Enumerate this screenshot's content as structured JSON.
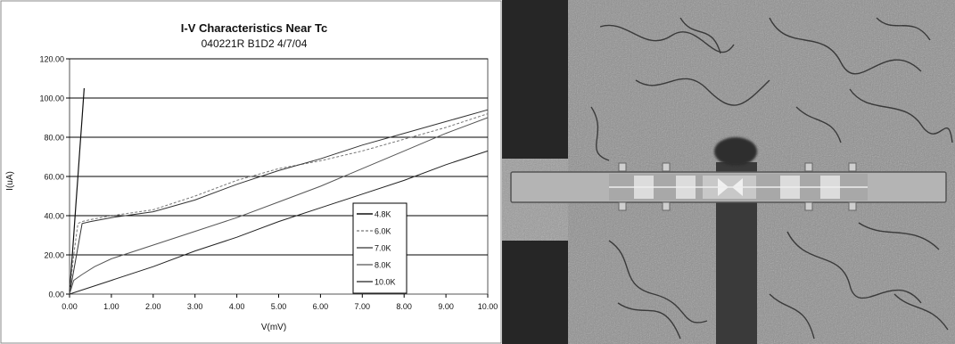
{
  "chart_data": {
    "type": "line",
    "title": "I-V Characteristics Near Tc",
    "subtitle": "040221R B1D2 4/7/04",
    "xlabel": "V(mV)",
    "ylabel": "I(uA)",
    "xlim": [
      0,
      10
    ],
    "ylim": [
      0,
      120
    ],
    "x_ticks": [
      "0.00",
      "1.00",
      "2.00",
      "3.00",
      "4.00",
      "5.00",
      "6.00",
      "7.00",
      "8.00",
      "9.00",
      "10.00"
    ],
    "y_ticks": [
      "0.00",
      "20.00",
      "40.00",
      "60.00",
      "80.00",
      "100.00",
      "120.00"
    ],
    "grid": "horizontal",
    "legend_position": "right",
    "series": [
      {
        "name": "4.8K",
        "x": [
          0,
          0.05,
          0.1,
          0.15,
          0.2,
          0.25,
          0.3,
          0.35
        ],
        "y": [
          0,
          15,
          30,
          45,
          60,
          75,
          90,
          105
        ]
      },
      {
        "name": "6.0K",
        "x": [
          0,
          0.05,
          0.1,
          0.2,
          0.3,
          0.5,
          1.0,
          2.0,
          3.0,
          4.0,
          5.0,
          6.0,
          7.0,
          8.0,
          9.0,
          10.0
        ],
        "y": [
          0,
          10,
          20,
          36,
          37,
          38,
          40,
          43,
          50,
          58,
          64,
          68,
          73,
          79,
          85,
          92
        ]
      },
      {
        "name": "7.0K",
        "x": [
          0,
          0.3,
          0.5,
          1.0,
          2.0,
          3.0,
          4.0,
          5.0,
          6.0,
          7.0,
          8.0,
          9.0,
          10.0
        ],
        "y": [
          0,
          36,
          37,
          39,
          42,
          48,
          56,
          63,
          69,
          76,
          82,
          88,
          94
        ]
      },
      {
        "name": "8.0K",
        "x": [
          0,
          0.1,
          0.3,
          0.6,
          1.0,
          2.0,
          3.0,
          4.0,
          5.0,
          6.0,
          7.0,
          8.0,
          9.0,
          10.0
        ],
        "y": [
          0,
          7,
          10,
          14,
          18,
          25,
          32,
          39,
          47,
          55,
          64,
          73,
          82,
          90
        ]
      },
      {
        "name": "10.0K",
        "x": [
          0,
          1.0,
          2.0,
          3.0,
          4.0,
          5.0,
          6.0,
          7.0,
          8.0,
          9.0,
          10.0
        ],
        "y": [
          0,
          7,
          14,
          22,
          29,
          37,
          44,
          51,
          58,
          66,
          73
        ]
      }
    ]
  }
}
